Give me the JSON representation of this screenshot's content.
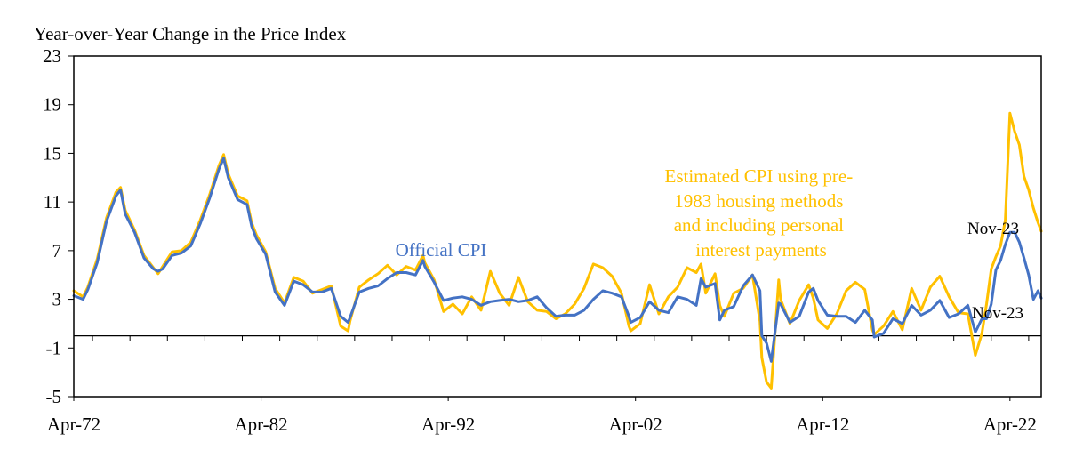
{
  "chart_data": {
    "type": "line",
    "title": "Year-over-Year Change in the Price Index",
    "xlabel": "",
    "ylabel": "",
    "ylim": [
      -5,
      23
    ],
    "yticks": [
      -5,
      -1,
      3,
      7,
      11,
      15,
      19,
      23
    ],
    "xlim": [
      1972.25,
      2023.92
    ],
    "xtick_labels": [
      "Apr-72",
      "Apr-82",
      "Apr-92",
      "Apr-02",
      "Apr-12",
      "Apr-22"
    ],
    "xtick_positions": [
      1972.25,
      1982.25,
      1992.25,
      2002.25,
      2012.25,
      2022.25
    ],
    "grid": false,
    "colors": {
      "official": "#4472C4",
      "estimated": "#FFC000"
    },
    "series": [
      {
        "name": "Official CPI",
        "x": [
          1972.25,
          1972.75,
          1973.0,
          1973.5,
          1974.0,
          1974.5,
          1974.75,
          1975.0,
          1975.5,
          1976.0,
          1976.5,
          1976.75,
          1977.0,
          1977.5,
          1978.0,
          1978.5,
          1979.0,
          1979.5,
          1980.0,
          1980.25,
          1980.5,
          1981.0,
          1981.5,
          1981.75,
          1982.0,
          1982.5,
          1983.0,
          1983.5,
          1984.0,
          1984.5,
          1985.0,
          1985.5,
          1986.0,
          1986.5,
          1986.9,
          1987.0,
          1987.5,
          1988.0,
          1988.5,
          1989.0,
          1989.5,
          1990.0,
          1990.5,
          1990.9,
          1991.0,
          1991.5,
          1992.0,
          1992.5,
          1993.0,
          1993.5,
          1994.0,
          1994.5,
          1995.0,
          1995.5,
          1996.0,
          1996.5,
          1997.0,
          1997.5,
          1998.0,
          1998.5,
          1999.0,
          1999.5,
          2000.0,
          2000.5,
          2001.0,
          2001.5,
          2001.9,
          2002.0,
          2002.5,
          2003.0,
          2003.5,
          2004.0,
          2004.5,
          2005.0,
          2005.5,
          2005.75,
          2006.0,
          2006.5,
          2006.75,
          2007.0,
          2007.5,
          2008.0,
          2008.5,
          2008.9,
          2009.0,
          2009.25,
          2009.5,
          2009.9,
          2010.0,
          2010.5,
          2011.0,
          2011.5,
          2011.75,
          2012.0,
          2012.5,
          2013.0,
          2013.5,
          2014.0,
          2014.5,
          2014.9,
          2015.0,
          2015.5,
          2016.0,
          2016.5,
          2017.0,
          2017.5,
          2018.0,
          2018.5,
          2019.0,
          2019.5,
          2020.0,
          2020.4,
          2020.75,
          2021.0,
          2021.25,
          2021.5,
          2021.75,
          2022.0,
          2022.25,
          2022.5,
          2022.75,
          2023.0,
          2023.25,
          2023.5,
          2023.75,
          2023.92
        ],
        "values": [
          3.3,
          3.0,
          3.8,
          6.0,
          9.4,
          11.5,
          12.0,
          10.0,
          8.5,
          6.4,
          5.5,
          5.3,
          5.5,
          6.6,
          6.8,
          7.4,
          9.2,
          11.3,
          13.7,
          14.6,
          13.0,
          11.2,
          10.8,
          9.0,
          8.0,
          6.7,
          3.6,
          2.5,
          4.5,
          4.2,
          3.6,
          3.6,
          3.9,
          1.6,
          1.1,
          1.5,
          3.6,
          3.9,
          4.1,
          4.7,
          5.2,
          5.2,
          5.0,
          6.2,
          5.7,
          4.4,
          2.9,
          3.1,
          3.2,
          3.0,
          2.5,
          2.8,
          2.9,
          3.0,
          2.8,
          2.9,
          3.2,
          2.3,
          1.6,
          1.7,
          1.7,
          2.1,
          3.0,
          3.7,
          3.5,
          3.2,
          1.6,
          1.1,
          1.5,
          2.8,
          2.1,
          1.9,
          3.2,
          3.0,
          2.5,
          4.7,
          4.0,
          4.3,
          1.3,
          2.1,
          2.4,
          4.1,
          5.0,
          3.7,
          0.0,
          -0.6,
          -2.1,
          2.7,
          2.6,
          1.1,
          1.6,
          3.6,
          3.9,
          2.9,
          1.7,
          1.6,
          1.6,
          1.1,
          2.1,
          1.3,
          -0.1,
          0.2,
          1.4,
          1.0,
          2.5,
          1.7,
          2.1,
          2.9,
          1.5,
          1.8,
          2.5,
          0.3,
          1.4,
          1.4,
          2.6,
          5.4,
          6.2,
          7.5,
          8.5,
          8.5,
          7.7,
          6.4,
          5.0,
          3.0,
          3.7,
          3.1
        ]
      },
      {
        "name": "Estimated CPI using pre-1983 housing methods and including personal interest payments",
        "x": [
          1972.25,
          1972.75,
          1973.0,
          1973.5,
          1974.0,
          1974.5,
          1974.75,
          1975.0,
          1975.5,
          1976.0,
          1976.5,
          1976.75,
          1977.0,
          1977.5,
          1978.0,
          1978.5,
          1979.0,
          1979.5,
          1980.0,
          1980.25,
          1980.5,
          1981.0,
          1981.5,
          1981.75,
          1982.0,
          1982.5,
          1983.0,
          1983.5,
          1984.0,
          1984.5,
          1985.0,
          1985.5,
          1986.0,
          1986.5,
          1986.9,
          1987.0,
          1987.5,
          1988.0,
          1988.5,
          1989.0,
          1989.5,
          1990.0,
          1990.5,
          1990.9,
          1991.0,
          1991.5,
          1992.0,
          1992.5,
          1993.0,
          1993.5,
          1994.0,
          1994.5,
          1995.0,
          1995.5,
          1996.0,
          1996.5,
          1997.0,
          1997.5,
          1998.0,
          1998.5,
          1999.0,
          1999.5,
          2000.0,
          2000.5,
          2001.0,
          2001.5,
          2001.9,
          2002.0,
          2002.5,
          2003.0,
          2003.5,
          2004.0,
          2004.5,
          2005.0,
          2005.5,
          2005.75,
          2006.0,
          2006.5,
          2006.75,
          2007.0,
          2007.5,
          2008.0,
          2008.5,
          2008.9,
          2009.0,
          2009.25,
          2009.5,
          2009.9,
          2010.0,
          2010.5,
          2011.0,
          2011.5,
          2011.75,
          2012.0,
          2012.5,
          2013.0,
          2013.5,
          2014.0,
          2014.5,
          2014.9,
          2015.0,
          2015.5,
          2016.0,
          2016.5,
          2017.0,
          2017.5,
          2018.0,
          2018.5,
          2019.0,
          2019.5,
          2020.0,
          2020.4,
          2020.75,
          2021.0,
          2021.25,
          2021.5,
          2021.75,
          2022.0,
          2022.25,
          2022.5,
          2022.75,
          2023.0,
          2023.25,
          2023.5,
          2023.75,
          2023.92
        ],
        "values": [
          3.7,
          3.2,
          4.0,
          6.3,
          9.7,
          11.8,
          12.2,
          10.3,
          8.7,
          6.6,
          5.6,
          5.1,
          5.7,
          6.9,
          7.0,
          7.7,
          9.5,
          11.6,
          14.0,
          14.9,
          13.3,
          11.5,
          11.1,
          9.3,
          8.3,
          6.9,
          3.9,
          2.7,
          4.8,
          4.5,
          3.5,
          3.8,
          4.1,
          0.8,
          0.4,
          1.2,
          4.0,
          4.6,
          5.1,
          5.8,
          5.0,
          5.7,
          5.4,
          6.6,
          6.0,
          4.6,
          2.0,
          2.6,
          1.8,
          3.2,
          2.1,
          5.3,
          3.5,
          2.5,
          4.8,
          2.8,
          2.1,
          2.0,
          1.4,
          1.8,
          2.6,
          3.9,
          5.9,
          5.6,
          4.9,
          3.5,
          0.8,
          0.4,
          1.0,
          4.2,
          1.8,
          3.2,
          4.0,
          5.6,
          5.2,
          5.9,
          3.5,
          5.1,
          2.5,
          1.6,
          3.5,
          3.9,
          5.0,
          1.2,
          -1.8,
          -3.8,
          -4.3,
          4.6,
          3.0,
          1.0,
          2.9,
          4.2,
          3.1,
          1.3,
          0.6,
          1.8,
          3.7,
          4.4,
          3.8,
          0.5,
          0.1,
          0.8,
          2.0,
          0.5,
          3.9,
          2.1,
          4.0,
          4.9,
          3.2,
          1.9,
          1.8,
          -1.6,
          0.2,
          2.6,
          5.5,
          6.5,
          7.4,
          9.5,
          18.3,
          16.8,
          15.7,
          13.1,
          12.0,
          10.5,
          9.3,
          8.6
        ]
      }
    ],
    "annotations": [
      {
        "text": "Official CPI",
        "series": "Official CPI"
      },
      {
        "text": "Estimated CPI using pre-1983 housing methods and including personal interest payments",
        "lines": [
          "Estimated CPI using pre-",
          "1983 housing methods",
          "and including  personal",
          "interest payments"
        ]
      },
      {
        "text": "Nov-23",
        "series": "Estimated CPI using pre-1983 housing methods and including personal interest payments"
      },
      {
        "text": "Nov-23",
        "series": "Official CPI"
      }
    ]
  }
}
